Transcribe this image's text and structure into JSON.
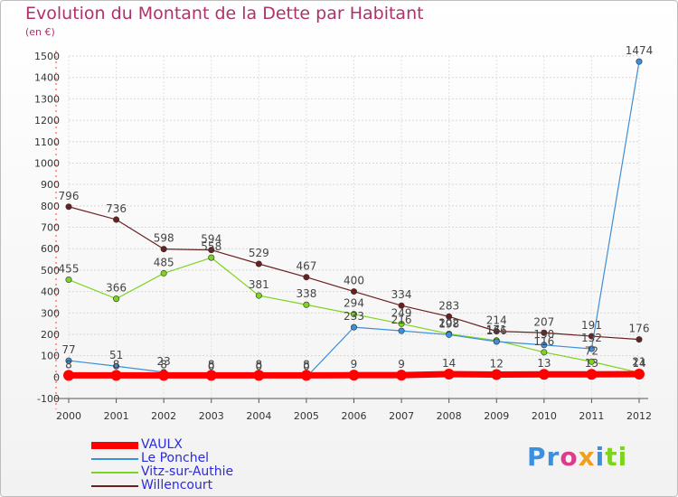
{
  "chart_data": {
    "type": "line",
    "title": "Evolution du Montant de la Dette par Habitant",
    "ylabel": "(en €)",
    "x": [
      "2000",
      "2001",
      "2002",
      "2003",
      "2004",
      "2005",
      "2006",
      "2007",
      "2008",
      "2009",
      "2010",
      "2011",
      "2012"
    ],
    "yticks": [
      -100,
      0,
      100,
      200,
      300,
      400,
      500,
      600,
      700,
      800,
      900,
      1000,
      1100,
      1200,
      1300,
      1400,
      1500
    ],
    "ylim": [
      -100,
      1500
    ],
    "series": [
      {
        "name": "VAULX",
        "color": "#ff0000",
        "values": [
          8,
          8,
          8,
          8,
          8,
          8,
          9,
          9,
          14,
          12,
          13,
          13,
          14
        ]
      },
      {
        "name": "Le Ponchel",
        "color": "#3d8fd8",
        "values": [
          77,
          51,
          23,
          0,
          0,
          0,
          233,
          216,
          198,
          166,
          150,
          132,
          1474
        ]
      },
      {
        "name": "Vitz-sur-Authie",
        "color": "#7ed320",
        "values": [
          455,
          366,
          485,
          558,
          381,
          338,
          294,
          249,
          202,
          171,
          116,
          72,
          21
        ]
      },
      {
        "name": "Willencourt",
        "color": "#6b1f1f",
        "values": [
          796,
          736,
          598,
          594,
          529,
          467,
          400,
          334,
          283,
          214,
          207,
          191,
          176
        ]
      }
    ],
    "labels": [
      {
        "series": 0,
        "text": [
          "8",
          "8",
          "8",
          "8",
          "8",
          "8",
          "9",
          "9",
          "14",
          "12",
          "13",
          "13",
          "14"
        ]
      },
      {
        "series": 1,
        "text": [
          "77",
          "51",
          "23",
          "0",
          "0",
          "0",
          "233",
          "216",
          "198",
          "166",
          "150",
          "132",
          "1474"
        ]
      },
      {
        "series": 2,
        "text": [
          "455",
          "366",
          "485",
          "558",
          "381",
          "338",
          "294",
          "249",
          "202",
          "171",
          "116",
          "72",
          "21"
        ]
      },
      {
        "series": 3,
        "text": [
          "796",
          "736",
          "598",
          "594",
          "529",
          "467",
          "400",
          "334",
          "283",
          "214",
          "207",
          "191",
          "176"
        ]
      }
    ]
  },
  "logo": {
    "letters": [
      "P",
      "r",
      "o",
      "x",
      "i",
      "t",
      "i"
    ],
    "colors": [
      "#3b8fe0",
      "#3b8fe0",
      "#e03b8a",
      "#f0a020",
      "#3b8fe0",
      "#7ed320",
      "#7ed320"
    ]
  }
}
